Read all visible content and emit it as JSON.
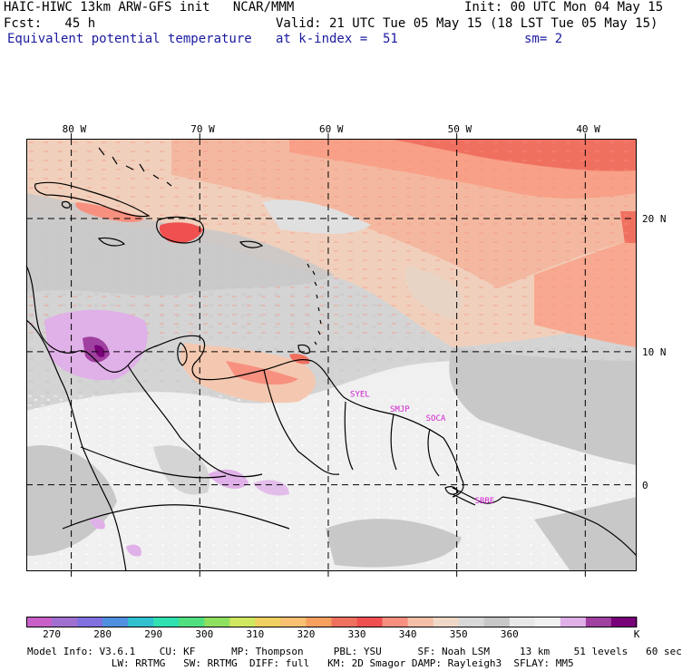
{
  "header": {
    "model_line": "HAIC-HIWC 13km ARW-GFS init   NCAR/MMM",
    "fcst_line": "Fcst:   45 h",
    "field_name": "Equivalent potential temperature",
    "init_line": "Init: 00 UTC Mon 04 May 15",
    "valid_line": "Valid: 21 UTC Tue 05 May 15 (18 LST Tue 05 May 15)",
    "level_line": "at k-index =  51",
    "smooth_line": "sm= 2"
  },
  "map": {
    "lon_labels": [
      "80 W",
      "70 W",
      "60 W",
      "50 W",
      "40 W"
    ],
    "lat_labels": [
      "20 N",
      "10 N",
      "0"
    ],
    "lon_values": [
      -80,
      -70,
      -60,
      -50,
      -40
    ],
    "lat_values": [
      20,
      10,
      0
    ],
    "extent": {
      "lon": [
        -83.5,
        -36.0
      ],
      "lat": [
        -6.5,
        26.0
      ]
    },
    "station_labels": [
      "SYEL",
      "SMJP",
      "SOCA",
      "SBBE"
    ],
    "station_color": "#d020d0"
  },
  "colorbar": {
    "colors": [
      "#c860c8",
      "#a070d0",
      "#8070e0",
      "#5090e0",
      "#30c0d0",
      "#30e0b0",
      "#50e080",
      "#90e060",
      "#d0e860",
      "#f0d060",
      "#f8c070",
      "#f8a060",
      "#f07060",
      "#f05050",
      "#f89080",
      "#f4c0a8",
      "#f0d8c8",
      "#d8d8d8",
      "#c8c8c8",
      "#e8e8e8",
      "#f0f0f0",
      "#e0b0e8",
      "#a040a0",
      "#780078"
    ],
    "labels": [
      "270",
      "280",
      "290",
      "300",
      "310",
      "320",
      "330",
      "340",
      "350",
      "360",
      "K"
    ],
    "units": "K"
  },
  "footer": {
    "line1": "Model Info: V3.6.1    CU: KF      MP: Thompson     PBL: YSU      SF: Noah LSM     13 km    51 levels   60 sec",
    "line2": "              LW: RRTMG   SW: RRTMG  DIFF: full   KM: 2D Smagor DAMP: Rayleigh3  SFLAY: MM5"
  }
}
